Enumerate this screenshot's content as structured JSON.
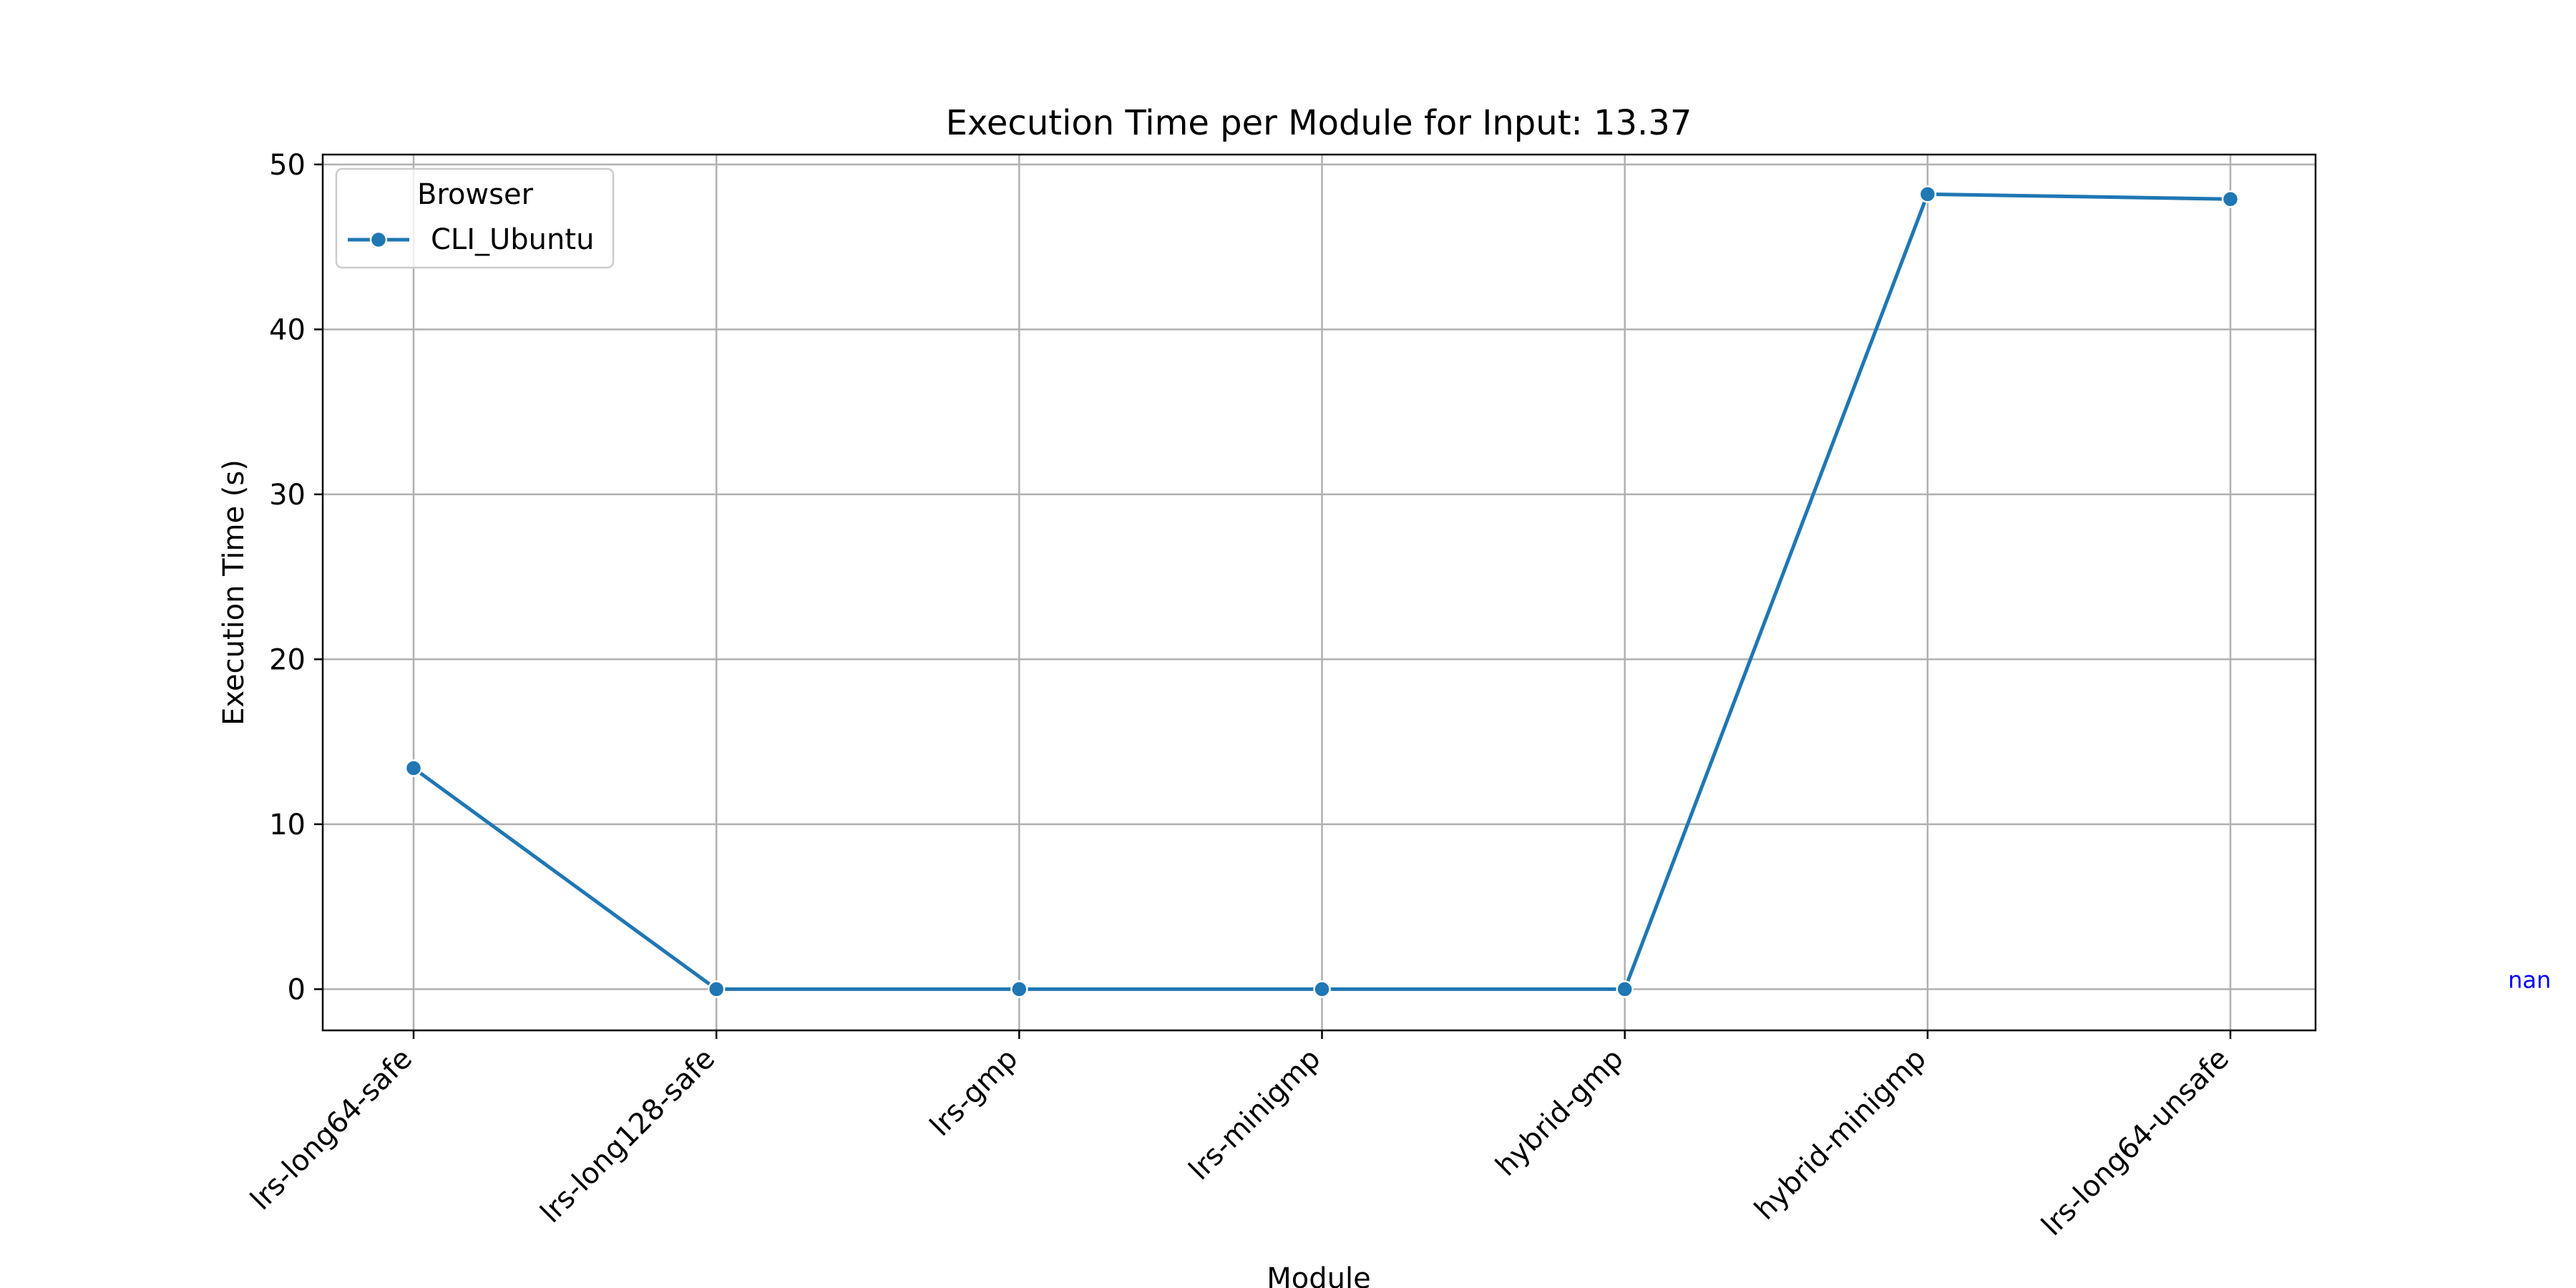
{
  "chart_data": {
    "type": "line",
    "title": "Execution Time per Module for Input: 13.37",
    "xlabel": "Module",
    "ylabel": "Execution Time (s)",
    "categories": [
      "lrs-long64-safe",
      "lrs-long128-safe",
      "lrs-gmp",
      "lrs-minigmp",
      "hybrid-gmp",
      "hybrid-minigmp",
      "lrs-long64-unsafe"
    ],
    "ylim": [
      -2.5,
      50.6
    ],
    "yticks": [
      0,
      10,
      20,
      30,
      40,
      50
    ],
    "grid": true,
    "legend": {
      "title": "Browser",
      "placement": "top-left"
    },
    "series": [
      {
        "name": "CLI_Ubuntu",
        "color": "#1f77b4",
        "marker": "circle",
        "values": [
          13.4,
          0,
          0,
          0,
          0,
          48.2,
          47.9
        ]
      }
    ],
    "annotation": {
      "text": "nan",
      "color": "#0000ff",
      "placement": "right-margin",
      "y": 0
    }
  }
}
